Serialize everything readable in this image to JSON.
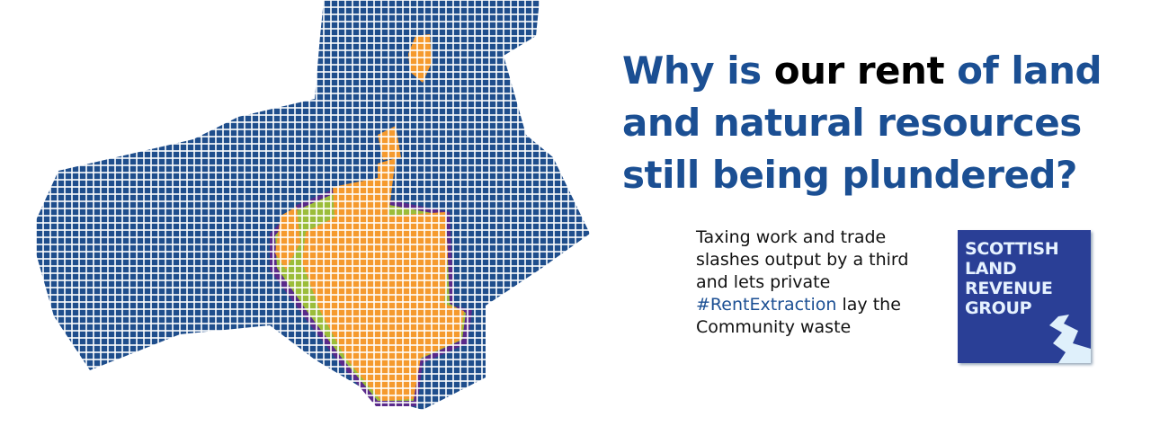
{
  "headline": {
    "part1": "Why is ",
    "emphasis": "our rent",
    "part2": " of land and natural resources still being plundered?"
  },
  "body": {
    "before": "Taxing work and trade slashes output by a third and lets private ",
    "hashtag": "#RentExtraction",
    "after": " lay the Community waste"
  },
  "logo": {
    "lines": [
      "SCOTTISH",
      "LAND",
      "REVENUE",
      "GROUP"
    ]
  },
  "colors": {
    "sea": "#1f4e8c",
    "land": "#f59a2e",
    "coast_green": "#9bbd3a",
    "coast_purple": "#5a2a8a",
    "headline": "#1b4f93",
    "logo_bg": "#2a3f96"
  }
}
